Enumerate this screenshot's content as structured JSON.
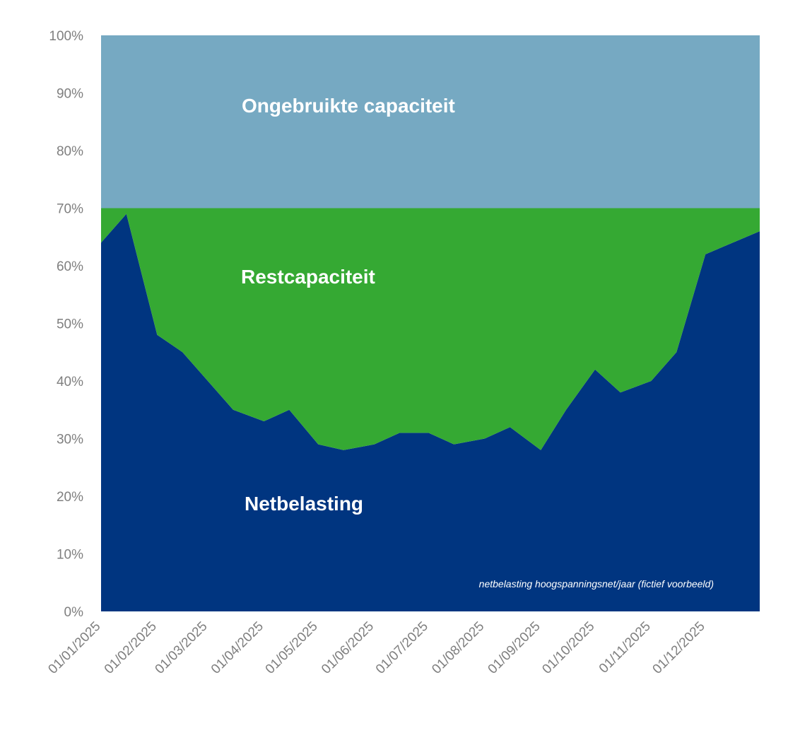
{
  "chart_data": {
    "type": "area",
    "stacked": true,
    "x": [
      "01/01/2025",
      "15/01/2025",
      "01/02/2025",
      "15/02/2025",
      "01/03/2025",
      "15/03/2025",
      "01/04/2025",
      "15/04/2025",
      "01/05/2025",
      "15/05/2025",
      "01/06/2025",
      "15/06/2025",
      "01/07/2025",
      "15/07/2025",
      "01/08/2025",
      "15/08/2025",
      "01/09/2025",
      "15/09/2025",
      "01/10/2025",
      "15/10/2025",
      "01/11/2025",
      "15/11/2025",
      "01/12/2025",
      "15/12/2025"
    ],
    "x_tick_labels": [
      "01/01/2025",
      "01/02/2025",
      "01/03/2025",
      "01/04/2025",
      "01/05/2025",
      "01/06/2025",
      "01/07/2025",
      "01/08/2025",
      "01/09/2025",
      "01/10/2025",
      "01/11/2025",
      "01/12/2025"
    ],
    "y_tick_labels": [
      "0%",
      "10%",
      "20%",
      "30%",
      "40%",
      "50%",
      "60%",
      "70%",
      "80%",
      "90%",
      "100%"
    ],
    "ylim": [
      0,
      100
    ],
    "y_unit": "%",
    "series": [
      {
        "name": "Netbelasting",
        "color": "#003580",
        "values": [
          64,
          69,
          48,
          45,
          40,
          35,
          33,
          35,
          29,
          28,
          29,
          31,
          31,
          29,
          30,
          32,
          28,
          35,
          42,
          38,
          40,
          45,
          62,
          66
        ]
      },
      {
        "name": "Restcapaciteit",
        "color": "#35a933",
        "values": [
          6,
          1,
          22,
          25,
          30,
          35,
          37,
          35,
          41,
          42,
          41,
          39,
          39,
          41,
          40,
          38,
          42,
          35,
          28,
          32,
          30,
          25,
          8,
          4
        ]
      },
      {
        "name": "Ongebruikte capaciteit",
        "color": "#76a9c2",
        "values": [
          30,
          30,
          30,
          30,
          30,
          30,
          30,
          30,
          30,
          30,
          30,
          30,
          30,
          30,
          30,
          30,
          30,
          30,
          30,
          30,
          30,
          30,
          30,
          30
        ]
      }
    ],
    "area_labels": [
      "Ongebruikte capaciteit",
      "Restcapaciteit",
      "Netbelasting"
    ],
    "annotation": "netbelasting hoogspanningsnet/jaar (fictief voorbeeld)",
    "grid": false,
    "legend": "none"
  }
}
